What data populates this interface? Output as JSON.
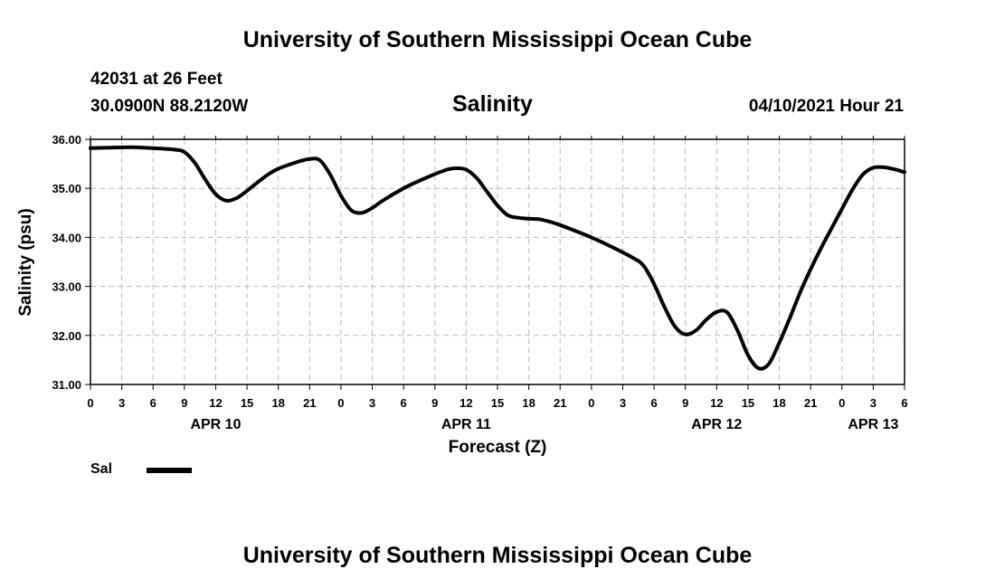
{
  "page": {
    "title_top": "University of Southern Mississippi Ocean Cube",
    "title_bottom": "University of Southern Mississippi Ocean Cube",
    "station": "42031 at 26 Feet",
    "coords": "30.0900N  88.2120W",
    "subtitle": "Salinity",
    "datetime": "04/10/2021 Hour 21"
  },
  "chart_data": {
    "type": "line",
    "title": "Salinity",
    "xlabel": "Forecast (Z)",
    "ylabel": "Salinity (psu)",
    "ylim": [
      31.0,
      36.0
    ],
    "xlim": [
      0,
      78
    ],
    "grid": true,
    "y_ticks": [
      "31.00",
      "32.00",
      "33.00",
      "34.00",
      "35.00",
      "36.00"
    ],
    "x_tick_hours": [
      0,
      3,
      6,
      9,
      12,
      15,
      18,
      21,
      24,
      27,
      30,
      33,
      36,
      39,
      42,
      45,
      48,
      51,
      54,
      57,
      60,
      63,
      66,
      69,
      72,
      75,
      78
    ],
    "x_tick_labels": [
      "0",
      "3",
      "6",
      "9",
      "12",
      "15",
      "18",
      "21",
      "0",
      "3",
      "6",
      "9",
      "12",
      "15",
      "18",
      "21",
      "0",
      "3",
      "6",
      "9",
      "12",
      "15",
      "18",
      "21",
      "0",
      "3",
      "6"
    ],
    "date_labels": [
      {
        "hour": 12,
        "label": "APR 10"
      },
      {
        "hour": 36,
        "label": "APR 11"
      },
      {
        "hour": 60,
        "label": "APR 12"
      },
      {
        "hour": 75,
        "label": "APR 13"
      }
    ],
    "legend": [
      {
        "name": "Sal",
        "color": "#000000",
        "position": "bottom-left"
      }
    ],
    "series": [
      {
        "name": "Sal",
        "x": [
          0,
          2,
          4,
          6,
          8,
          9,
          10,
          11,
          12,
          13,
          14,
          15,
          16,
          17,
          18,
          20,
          21,
          22,
          23,
          24,
          25,
          26,
          27,
          28,
          30,
          32,
          34,
          35,
          36,
          37,
          38,
          39,
          40,
          41,
          42,
          43,
          44,
          45,
          46,
          48,
          50,
          52,
          53,
          54,
          55,
          56,
          57,
          58,
          59,
          60,
          61,
          62,
          63,
          64,
          65,
          66,
          67,
          68,
          69,
          70,
          71,
          72,
          73,
          74,
          75,
          76,
          77,
          78
        ],
        "values": [
          35.82,
          35.83,
          35.84,
          35.82,
          35.79,
          35.74,
          35.52,
          35.18,
          34.88,
          34.75,
          34.8,
          34.95,
          35.12,
          35.28,
          35.4,
          35.55,
          35.6,
          35.57,
          35.27,
          34.85,
          34.55,
          34.5,
          34.6,
          34.75,
          35.0,
          35.2,
          35.37,
          35.41,
          35.38,
          35.21,
          34.93,
          34.65,
          34.45,
          34.4,
          34.38,
          34.37,
          34.32,
          34.25,
          34.17,
          34.0,
          33.8,
          33.58,
          33.42,
          33.05,
          32.58,
          32.18,
          32.02,
          32.1,
          32.32,
          32.48,
          32.47,
          32.1,
          31.6,
          31.33,
          31.42,
          31.85,
          32.35,
          32.88,
          33.35,
          33.78,
          34.18,
          34.58,
          34.97,
          35.28,
          35.42,
          35.43,
          35.39,
          35.33
        ]
      }
    ]
  }
}
